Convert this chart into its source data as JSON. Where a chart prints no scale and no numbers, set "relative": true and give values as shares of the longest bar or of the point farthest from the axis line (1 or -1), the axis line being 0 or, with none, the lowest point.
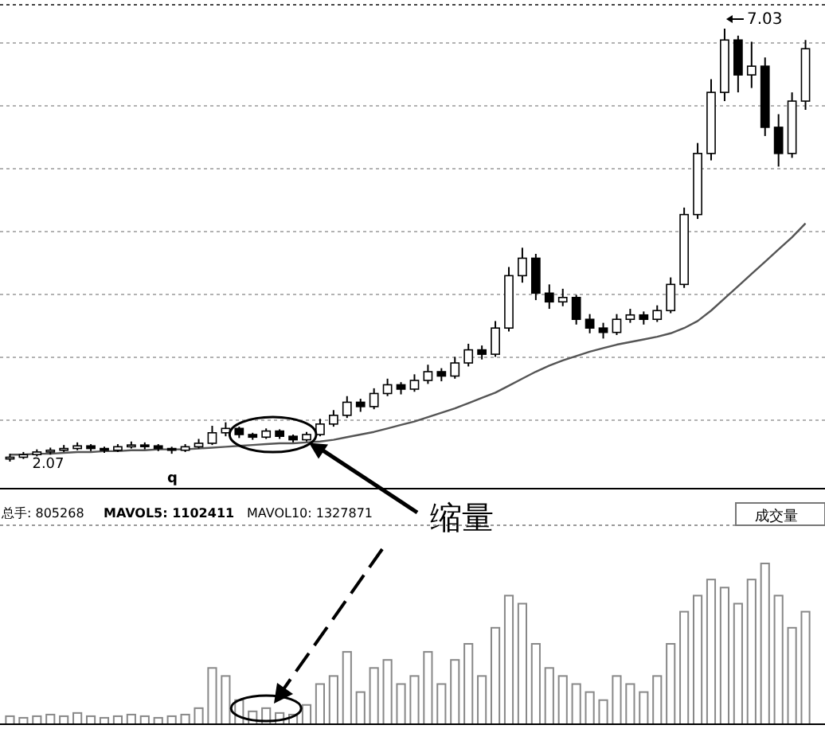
{
  "chart_data": [
    {
      "type": "candlestick",
      "categories": [
        null,
        null,
        null,
        null,
        null,
        null,
        null,
        null,
        null,
        null,
        null,
        null,
        null,
        null,
        null,
        null,
        null,
        null,
        null,
        null,
        null,
        null,
        null,
        null,
        null,
        null,
        null,
        null,
        null,
        null,
        null,
        null,
        null,
        null,
        null,
        null,
        null,
        null,
        null,
        null,
        null,
        null,
        null,
        null,
        null,
        null,
        null,
        null,
        null,
        null,
        null,
        null,
        null,
        null,
        null,
        null,
        null,
        null,
        null,
        null
      ],
      "ohlc": [
        [
          2.1,
          2.16,
          2.07,
          2.12
        ],
        [
          2.12,
          2.18,
          2.1,
          2.15
        ],
        [
          2.15,
          2.21,
          2.13,
          2.18
        ],
        [
          2.18,
          2.23,
          2.15,
          2.2
        ],
        [
          2.2,
          2.26,
          2.18,
          2.22
        ],
        [
          2.22,
          2.29,
          2.2,
          2.25
        ],
        [
          2.25,
          2.27,
          2.19,
          2.22
        ],
        [
          2.22,
          2.24,
          2.17,
          2.2
        ],
        [
          2.2,
          2.27,
          2.18,
          2.24
        ],
        [
          2.24,
          2.3,
          2.22,
          2.26
        ],
        [
          2.26,
          2.29,
          2.21,
          2.25
        ],
        [
          2.25,
          2.27,
          2.19,
          2.22
        ],
        [
          2.22,
          2.24,
          2.16,
          2.2
        ],
        [
          2.2,
          2.27,
          2.18,
          2.24
        ],
        [
          2.24,
          2.33,
          2.22,
          2.28
        ],
        [
          2.28,
          2.48,
          2.26,
          2.4
        ],
        [
          2.4,
          2.52,
          2.36,
          2.45
        ],
        [
          2.45,
          2.47,
          2.34,
          2.38
        ],
        [
          2.38,
          2.4,
          2.32,
          2.35
        ],
        [
          2.35,
          2.45,
          2.33,
          2.42
        ],
        [
          2.42,
          2.44,
          2.33,
          2.36
        ],
        [
          2.36,
          2.38,
          2.29,
          2.32
        ],
        [
          2.32,
          2.41,
          2.3,
          2.38
        ],
        [
          2.38,
          2.56,
          2.36,
          2.5
        ],
        [
          2.5,
          2.66,
          2.47,
          2.6
        ],
        [
          2.6,
          2.82,
          2.57,
          2.75
        ],
        [
          2.75,
          2.79,
          2.64,
          2.7
        ],
        [
          2.7,
          2.91,
          2.67,
          2.85
        ],
        [
          2.85,
          3.02,
          2.82,
          2.95
        ],
        [
          2.95,
          2.98,
          2.84,
          2.9
        ],
        [
          2.9,
          3.07,
          2.87,
          3.0
        ],
        [
          3.0,
          3.18,
          2.96,
          3.1
        ],
        [
          3.1,
          3.14,
          2.99,
          3.05
        ],
        [
          3.05,
          3.27,
          3.02,
          3.2
        ],
        [
          3.2,
          3.42,
          3.16,
          3.35
        ],
        [
          3.35,
          3.4,
          3.24,
          3.3
        ],
        [
          3.3,
          3.68,
          3.27,
          3.6
        ],
        [
          3.6,
          4.3,
          3.56,
          4.2
        ],
        [
          4.2,
          4.52,
          4.12,
          4.4
        ],
        [
          4.4,
          4.45,
          3.92,
          4.0
        ],
        [
          4.0,
          4.1,
          3.82,
          3.9
        ],
        [
          3.9,
          4.05,
          3.85,
          3.95
        ],
        [
          3.95,
          3.98,
          3.64,
          3.7
        ],
        [
          3.7,
          3.76,
          3.54,
          3.6
        ],
        [
          3.6,
          3.66,
          3.48,
          3.55
        ],
        [
          3.55,
          3.76,
          3.52,
          3.7
        ],
        [
          3.7,
          3.82,
          3.66,
          3.75
        ],
        [
          3.75,
          3.79,
          3.64,
          3.7
        ],
        [
          3.7,
          3.86,
          3.67,
          3.8
        ],
        [
          3.8,
          4.18,
          3.77,
          4.1
        ],
        [
          4.1,
          4.98,
          4.06,
          4.9
        ],
        [
          4.9,
          5.72,
          4.85,
          5.6
        ],
        [
          5.6,
          6.45,
          5.52,
          6.3
        ],
        [
          6.3,
          7.03,
          6.2,
          6.9
        ],
        [
          6.9,
          6.95,
          6.3,
          6.5
        ],
        [
          6.5,
          6.88,
          6.35,
          6.6
        ],
        [
          6.6,
          6.7,
          5.8,
          5.9
        ],
        [
          5.9,
          6.05,
          5.45,
          5.6
        ],
        [
          5.6,
          6.3,
          5.55,
          6.2
        ],
        [
          6.2,
          6.9,
          6.1,
          6.8
        ]
      ],
      "series": [
        {
          "type": "line",
          "color": "#555555",
          "values": [
            2.15,
            2.15,
            2.16,
            2.16,
            2.17,
            2.18,
            2.18,
            2.19,
            2.19,
            2.2,
            2.2,
            2.21,
            2.21,
            2.21,
            2.22,
            2.23,
            2.24,
            2.25,
            2.26,
            2.27,
            2.28,
            2.28,
            2.29,
            2.3,
            2.32,
            2.35,
            2.38,
            2.41,
            2.45,
            2.49,
            2.53,
            2.58,
            2.63,
            2.68,
            2.74,
            2.8,
            2.86,
            2.94,
            3.02,
            3.1,
            3.17,
            3.23,
            3.28,
            3.33,
            3.37,
            3.41,
            3.44,
            3.47,
            3.5,
            3.54,
            3.6,
            3.68,
            3.8,
            3.94,
            4.08,
            4.22,
            4.36,
            4.5,
            4.64,
            4.8
          ]
        }
      ],
      "grid": "y",
      "annotations": [
        "7.03",
        "2.07",
        "q",
        "缩量"
      ]
    },
    {
      "type": "bar",
      "relative": true,
      "color": "#888888",
      "categories": [
        null,
        null,
        null,
        null,
        null,
        null,
        null,
        null,
        null,
        null,
        null,
        null,
        null,
        null,
        null,
        null,
        null,
        null,
        null,
        null,
        null,
        null,
        null,
        null,
        null,
        null,
        null,
        null,
        null,
        null,
        null,
        null,
        null,
        null,
        null,
        null,
        null,
        null,
        null,
        null,
        null,
        null,
        null,
        null,
        null,
        null,
        null,
        null,
        null,
        null,
        null,
        null,
        null,
        null,
        null,
        null,
        null,
        null,
        null,
        null
      ],
      "values": [
        0.05,
        0.04,
        0.05,
        0.06,
        0.05,
        0.07,
        0.05,
        0.04,
        0.05,
        0.06,
        0.05,
        0.04,
        0.05,
        0.06,
        0.1,
        0.35,
        0.3,
        0.15,
        0.08,
        0.1,
        0.07,
        0.06,
        0.12,
        0.25,
        0.3,
        0.45,
        0.2,
        0.35,
        0.4,
        0.25,
        0.3,
        0.45,
        0.25,
        0.4,
        0.5,
        0.3,
        0.6,
        0.8,
        0.75,
        0.5,
        0.35,
        0.3,
        0.25,
        0.2,
        0.15,
        0.3,
        0.25,
        0.2,
        0.3,
        0.5,
        0.7,
        0.8,
        0.9,
        0.85,
        0.75,
        0.9,
        1.0,
        0.8,
        0.6,
        0.7
      ],
      "annotations": [
        "总手: 805268",
        "MAVOL5: 1102411",
        "MAVOL10: 1327871",
        "成交量"
      ]
    }
  ]
}
